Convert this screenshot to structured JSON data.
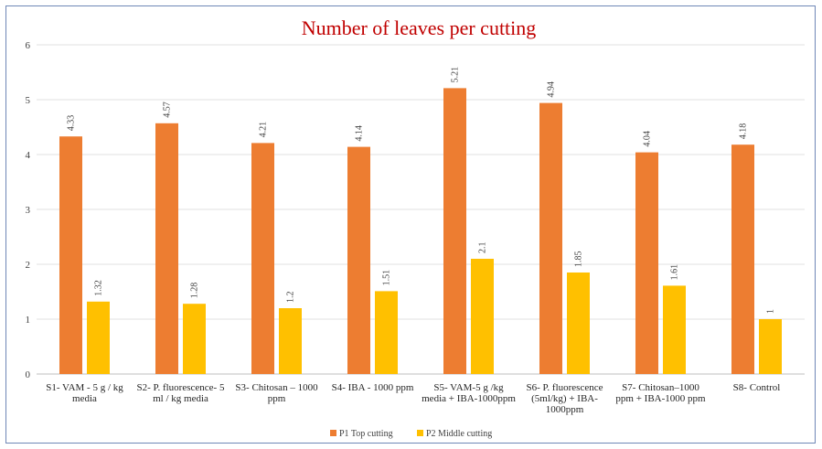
{
  "chart_data": {
    "type": "bar",
    "title": "Number of leaves per cutting",
    "xlabel": "",
    "ylabel": "",
    "ylim": [
      0,
      6
    ],
    "yticks": [
      "0",
      "1",
      "2",
      "3",
      "4",
      "5",
      "6"
    ],
    "grid": true,
    "legend_position": "bottom",
    "categories": [
      [
        "S1- VAM - 5 g / kg",
        "media"
      ],
      [
        "S2- P. fluorescence- 5",
        "ml / kg media"
      ],
      [
        "S3- Chitosan – 1000",
        "ppm"
      ],
      [
        "S4- IBA - 1000 ppm"
      ],
      [
        "S5- VAM-5 g /kg",
        "media + IBA-1000ppm"
      ],
      [
        "S6- P. fluorescence",
        "(5ml/kg) + IBA-",
        "1000ppm"
      ],
      [
        "S7- Chitosan–1000",
        "ppm + IBA-1000 ppm"
      ],
      [
        "S8- Control"
      ]
    ],
    "series": [
      {
        "name": "P1 Top cutting",
        "color": "#ed7d31",
        "values": [
          4.33,
          4.57,
          4.21,
          4.14,
          5.21,
          4.94,
          4.04,
          4.18
        ],
        "labels": [
          "4.33",
          "4.57",
          "4.21",
          "4.14",
          "5.21",
          "4.94",
          "4.04",
          "4.18"
        ]
      },
      {
        "name": "P2 Middle cutting",
        "color": "#ffc000",
        "values": [
          1.32,
          1.28,
          1.2,
          1.51,
          2.1,
          1.85,
          1.61,
          1.0
        ],
        "labels": [
          "1.32",
          "1.28",
          "1.2",
          "1.51",
          "2.1",
          "1.85",
          "1.61",
          "1"
        ]
      }
    ]
  }
}
